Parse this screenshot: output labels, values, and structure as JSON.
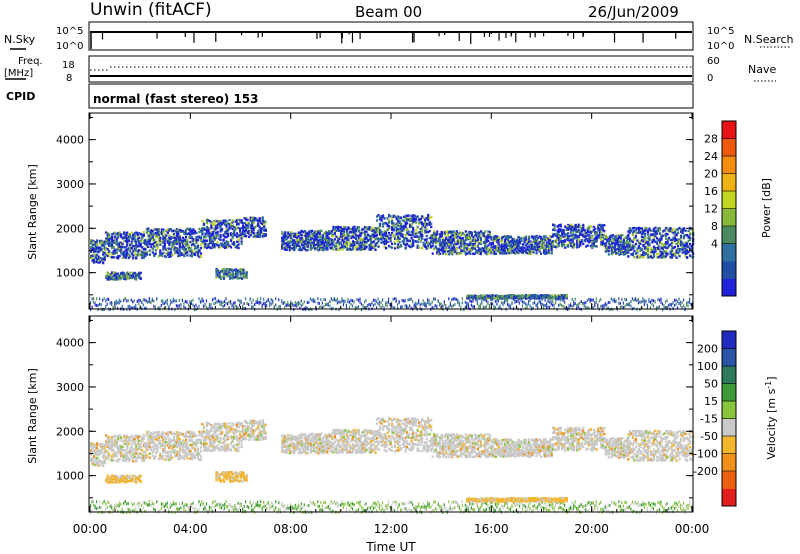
{
  "header": {
    "station": "Unwin (fitACF)",
    "beam": "Beam 00",
    "date": "26/Jun/2009"
  },
  "noise_panel": {
    "left_label": "N.Sky",
    "right_label": "N.Search",
    "ticks": [
      "10^5",
      "10^0"
    ]
  },
  "freq_panel": {
    "left_label_1": "Freq.",
    "left_label_2": "[MHz]",
    "left_ticks": [
      "18",
      "8"
    ],
    "right_label": "Nave",
    "right_ticks": [
      "60",
      "0"
    ]
  },
  "cpid": {
    "label": "CPID",
    "text": "normal (fast stereo) 153"
  },
  "power_panel": {
    "ylabel": "Slant Range [km]",
    "yticks": [
      "4000",
      "3000",
      "2000",
      "1000"
    ],
    "colorbar_label": "Power [dB]",
    "colorbar_ticks": [
      "28",
      "24",
      "20",
      "16",
      "12",
      "8",
      "4"
    ],
    "colors": [
      "#1f22d8",
      "#224fa6",
      "#2f6fa1",
      "#4b8a5e",
      "#88b83a",
      "#c3d523",
      "#f0b316",
      "#f38d10",
      "#ee5a0d",
      "#e61414"
    ]
  },
  "velocity_panel": {
    "ylabel": "Slant Range [km]",
    "yticks": [
      "4000",
      "3000",
      "2000",
      "1000"
    ],
    "colorbar_label": "Velocity",
    "colorbar_unit": "[m s",
    "colorbar_unit_sup": "-1",
    "colorbar_unit_end": "]",
    "colorbar_ticks": [
      "200",
      "100",
      "50",
      "15",
      "-15",
      "-50",
      "-100",
      "-200"
    ],
    "colors": [
      "#1f2cbf",
      "#2a56a6",
      "#2e7a5c",
      "#3e9a36",
      "#88c53c",
      "#c9c9c9",
      "#f2b52c",
      "#f1901b",
      "#ec5e12",
      "#e21d1d"
    ]
  },
  "xaxis": {
    "label": "Time UT",
    "ticks": [
      "00:00",
      "04:00",
      "08:00",
      "12:00",
      "16:00",
      "20:00",
      "00:00"
    ]
  },
  "chart_data": {
    "type": "heatmap",
    "x_range_hours": [
      0,
      24
    ],
    "y_range_km": [
      180,
      4600
    ],
    "power_range_db": [
      0,
      30
    ],
    "velocity_range_ms": [
      -250,
      250
    ],
    "echo_bands": [
      {
        "t0": 0.0,
        "t1": 0.6,
        "r": 1500,
        "w": 260
      },
      {
        "t0": 0.6,
        "t1": 2.2,
        "r": 1650,
        "w": 300
      },
      {
        "t0": 2.2,
        "t1": 4.4,
        "r": 1700,
        "w": 320
      },
      {
        "t0": 4.4,
        "t1": 6.0,
        "r": 1900,
        "w": 320
      },
      {
        "t0": 6.0,
        "t1": 7.0,
        "r": 2050,
        "w": 220
      },
      {
        "t0": 7.6,
        "t1": 9.6,
        "r": 1750,
        "w": 220
      },
      {
        "t0": 9.6,
        "t1": 11.4,
        "r": 1800,
        "w": 260
      },
      {
        "t0": 11.4,
        "t1": 13.6,
        "r": 1950,
        "w": 380
      },
      {
        "t0": 13.6,
        "t1": 16.0,
        "r": 1700,
        "w": 260
      },
      {
        "t0": 16.0,
        "t1": 18.4,
        "r": 1650,
        "w": 200
      },
      {
        "t0": 18.4,
        "t1": 20.5,
        "r": 1850,
        "w": 260
      },
      {
        "t0": 20.5,
        "t1": 21.4,
        "r": 1650,
        "w": 220
      },
      {
        "t0": 21.4,
        "t1": 24.0,
        "r": 1700,
        "w": 340
      }
    ],
    "secondary_patches": [
      {
        "t0": 0.6,
        "t1": 2.0,
        "r": 950,
        "w": 160
      },
      {
        "t0": 5.0,
        "t1": 6.2,
        "r": 1000,
        "w": 220
      },
      {
        "t0": 15.0,
        "t1": 19.0,
        "r": 480,
        "w": 80
      }
    ],
    "series": [
      {
        "name": "N.Sky",
        "level_log10": 4.3
      },
      {
        "name": "N.Search",
        "level_log10": 4.3
      },
      {
        "name": "Freq",
        "value_mhz": 10.5
      },
      {
        "name": "Nave",
        "value": 36
      }
    ]
  }
}
